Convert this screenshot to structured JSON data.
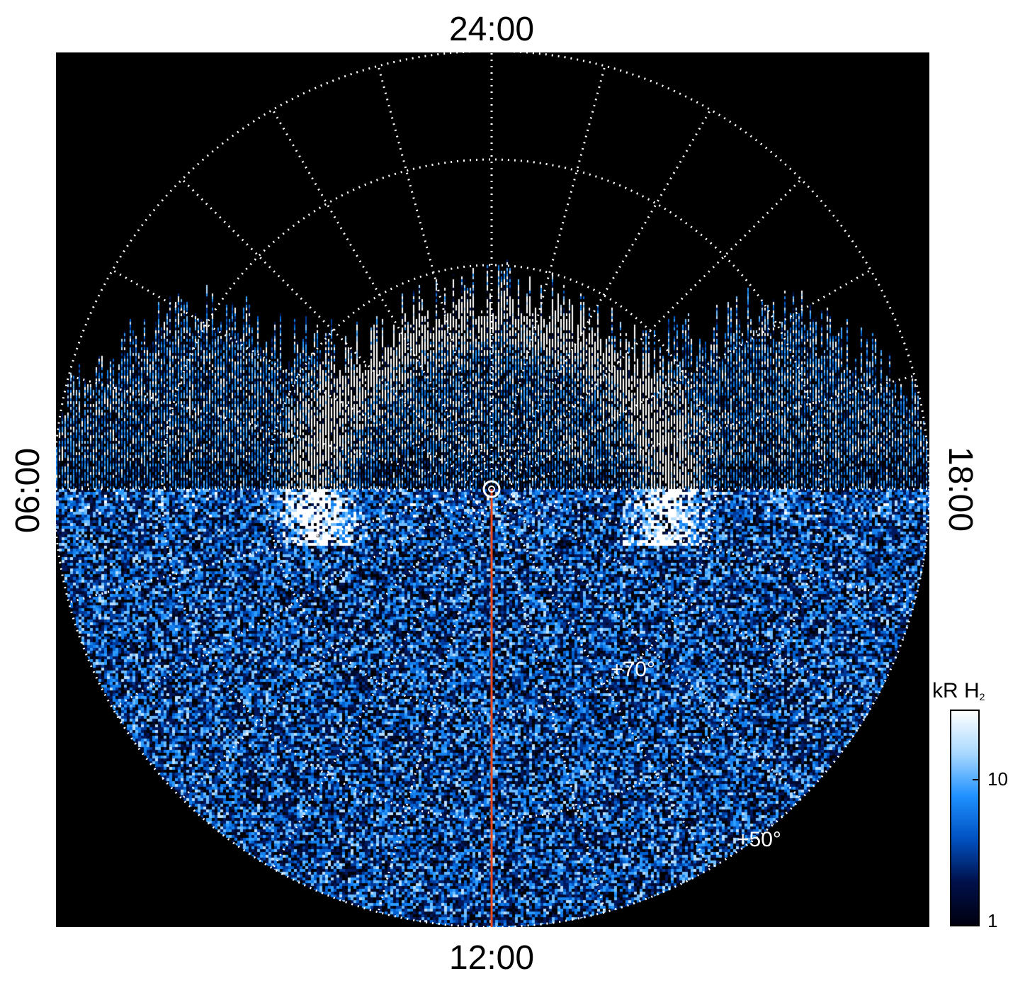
{
  "figure": {
    "time_labels": {
      "top": "24:00",
      "bottom": "12:00",
      "left": "06:00",
      "right": "18:00"
    },
    "latitude_labels": {
      "lat_70": "+70°",
      "lat_50": "+50°"
    },
    "colorbar": {
      "title": "kR H",
      "title_subscript": "2",
      "tick_labels": [
        "10",
        "1"
      ],
      "colors": [
        "#000010",
        "#00104a",
        "#0050c0",
        "#1e90ff",
        "#a8d8ff",
        "#ffffff"
      ]
    },
    "colors": {
      "background": "#000000",
      "grid": "#ffffff",
      "meridian_line": "#e8481c"
    }
  }
}
